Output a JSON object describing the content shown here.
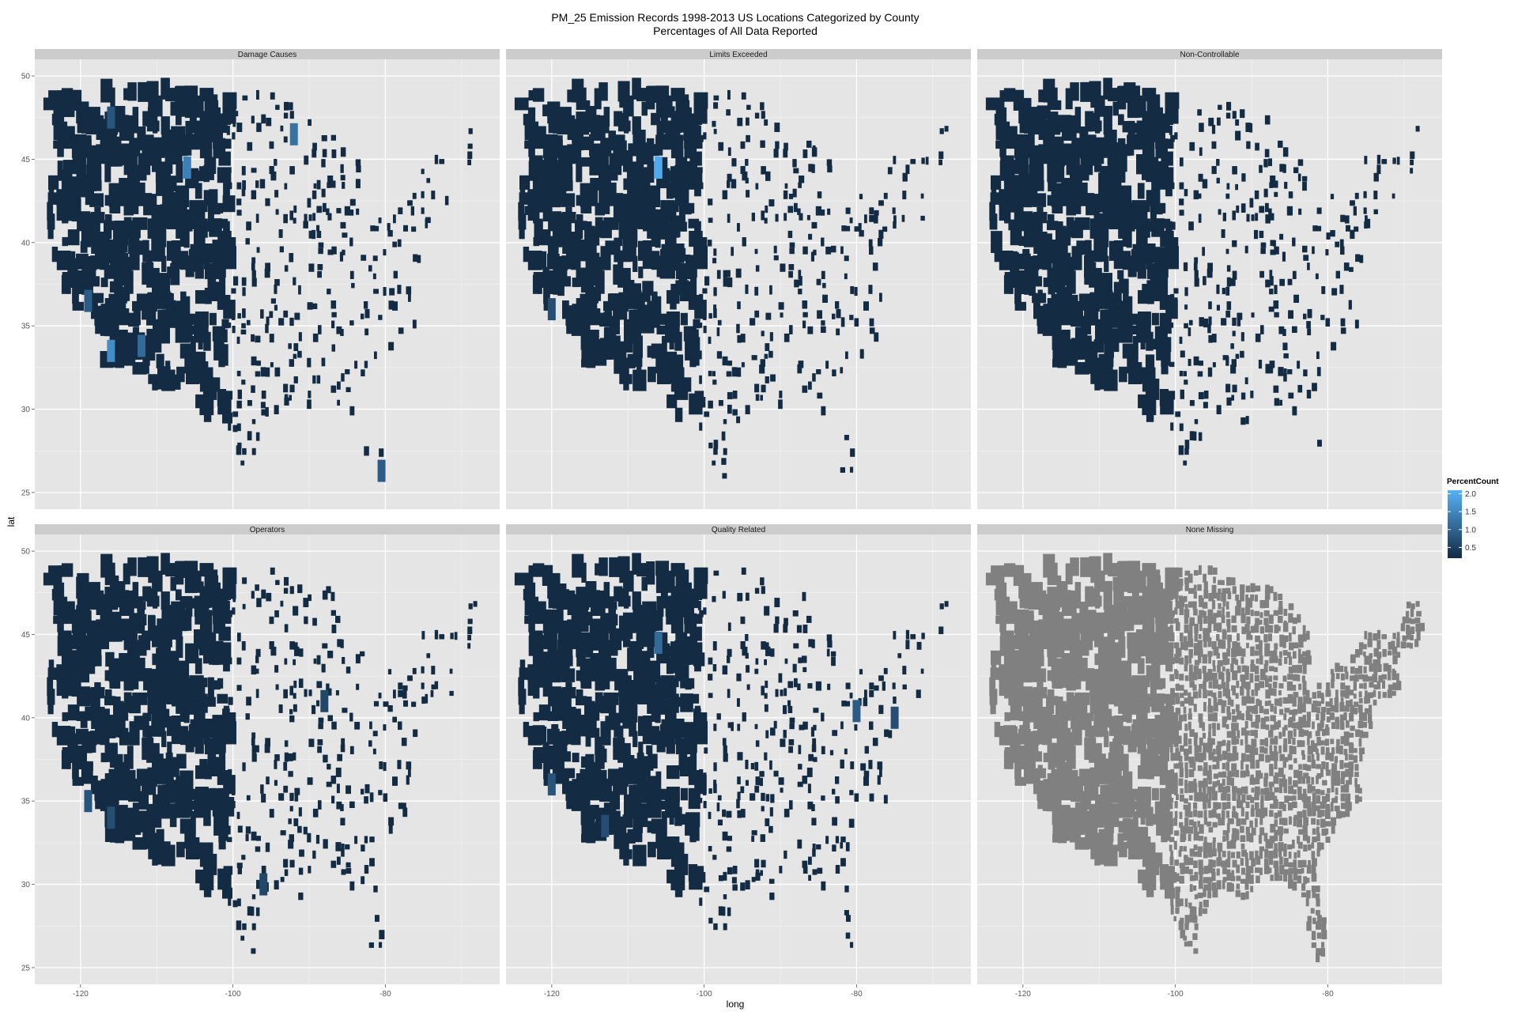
{
  "chart_data": {
    "type": "choropleth-facet",
    "title": "PM_25 Emission Records 1998-2013 US Locations Categorized by County",
    "subtitle": "Percentages of All Data Reported",
    "xlabel": "long",
    "ylabel": "lat",
    "xlim": [
      -126,
      -65
    ],
    "ylim": [
      24,
      51
    ],
    "x_ticks": [
      "-120",
      "-100",
      "-80"
    ],
    "y_ticks": [
      "50",
      "45",
      "40",
      "35",
      "30",
      "25"
    ],
    "grid": true,
    "panels": [
      {
        "label": "Damage Causes",
        "style": "sparse",
        "highlights": [
          {
            "long": -106,
            "lat": 44.5,
            "value": 1.4
          },
          {
            "long": -116,
            "lat": 33.5,
            "value": 1.6
          },
          {
            "long": -112,
            "lat": 33.8,
            "value": 1.1
          },
          {
            "long": -119,
            "lat": 36.5,
            "value": 0.9
          },
          {
            "long": -92,
            "lat": 46.5,
            "value": 1.2
          },
          {
            "long": -80.5,
            "lat": 26.3,
            "value": 0.9
          },
          {
            "long": -116,
            "lat": 47.5,
            "value": 0.8
          }
        ]
      },
      {
        "label": "Limits Exceeded",
        "style": "sparse",
        "highlights": [
          {
            "long": -106,
            "lat": 44.5,
            "value": 2.0
          },
          {
            "long": -120,
            "lat": 36,
            "value": 0.7
          }
        ]
      },
      {
        "label": "Non-Controllable",
        "style": "sparse",
        "highlights": []
      },
      {
        "label": "Operators",
        "style": "sparse",
        "highlights": [
          {
            "long": -119,
            "lat": 35,
            "value": 0.8
          },
          {
            "long": -116,
            "lat": 34,
            "value": 0.7
          },
          {
            "long": -88,
            "lat": 41,
            "value": 0.6
          },
          {
            "long": -96,
            "lat": 30,
            "value": 0.6
          }
        ]
      },
      {
        "label": "Quality Related",
        "style": "sparse",
        "highlights": [
          {
            "long": -106,
            "lat": 44.5,
            "value": 1.1
          },
          {
            "long": -120,
            "lat": 36,
            "value": 0.8
          },
          {
            "long": -113,
            "lat": 33.5,
            "value": 0.7
          },
          {
            "long": -80,
            "lat": 40.4,
            "value": 0.9
          },
          {
            "long": -75,
            "lat": 40,
            "value": 0.7
          }
        ]
      },
      {
        "label": "None Missing",
        "style": "full",
        "highlights": []
      }
    ],
    "legend": {
      "title": "PercentCount",
      "position": "right",
      "breaks": [
        "2.0",
        "1.5",
        "1.0",
        "0.5"
      ],
      "range": [
        0.2,
        2.1
      ],
      "low_color": "#132B43",
      "high_color": "#56B1F7"
    },
    "colors": {
      "panel_bg": "#E5E5E5",
      "strip_bg": "#CCCCCC",
      "grid": "#FFFFFF",
      "county_low": "#132B43",
      "county_high": "#56B1F7",
      "missing_fill": "#808080"
    }
  }
}
